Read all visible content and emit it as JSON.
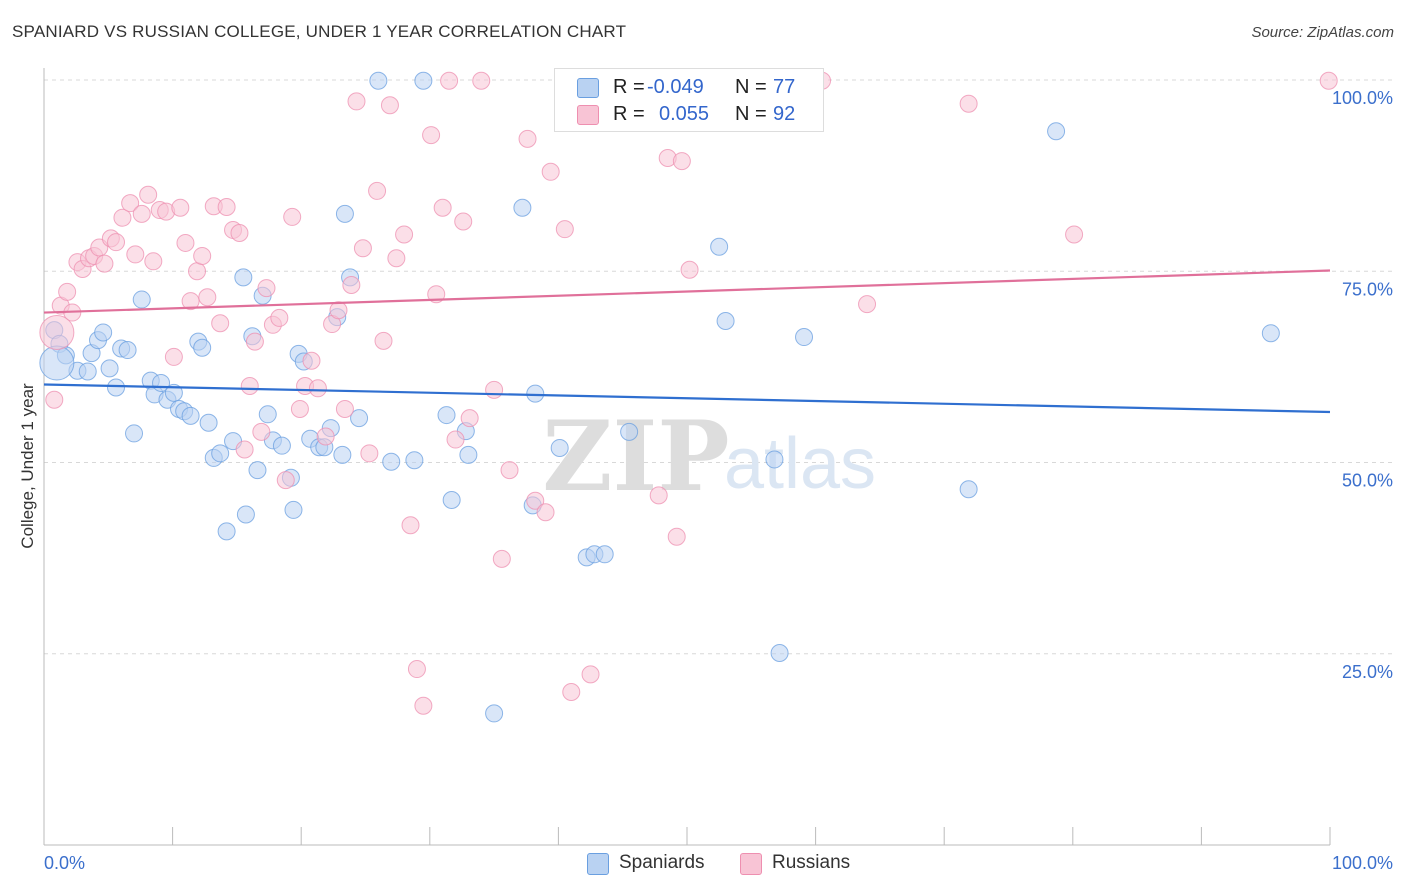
{
  "title": "SPANIARD VS RUSSIAN COLLEGE, UNDER 1 YEAR CORRELATION CHART",
  "source": "Source: ZipAtlas.com",
  "colors": {
    "spaniards": "#6a9fe0",
    "spaniards_fill": "#b9d2f2",
    "spaniards_line": "#2f6fd0",
    "russians": "#ee8fb0",
    "russians_fill": "#f8c4d5",
    "russians_line": "#e0709a",
    "axis_value": "#3b6fcc"
  },
  "legend": {
    "rows": [
      {
        "r_label": "R =",
        "r_value": "-0.049",
        "n_label": "N =",
        "n_value": "77"
      },
      {
        "r_label": "R =",
        "r_value": "0.055",
        "n_label": "N =",
        "n_value": "92"
      }
    ]
  },
  "bottom_legend": [
    {
      "label": "Spaniards"
    },
    {
      "label": "Russians"
    }
  ],
  "watermark": {
    "zip": "ZIP",
    "atlas": "atlas"
  },
  "chart_data": {
    "type": "scatter",
    "title": "SPANIARD VS RUSSIAN COLLEGE, UNDER 1 YEAR CORRELATION CHART",
    "xlabel": "",
    "ylabel": "College, Under 1 year",
    "xlim": [
      0,
      100
    ],
    "ylim": [
      0,
      100
    ],
    "x_tick_labels": [
      "0.0%",
      "100.0%"
    ],
    "y_tick_labels": [
      "25.0%",
      "50.0%",
      "75.0%",
      "100.0%"
    ],
    "y_ticks": [
      25,
      50,
      75,
      100
    ],
    "grid": "horizontal dashed",
    "legend_position": "top-center",
    "series": [
      {
        "name": "Spaniards",
        "r": -0.049,
        "n": 77,
        "trend": {
          "x": [
            0,
            100
          ],
          "y": [
            60.2,
            56.6
          ]
        },
        "points": [
          [
            0.8,
            67.3
          ],
          [
            1.2,
            65.5
          ],
          [
            1.7,
            64.0
          ],
          [
            2.6,
            62.0
          ],
          [
            3.4,
            61.9
          ],
          [
            3.7,
            64.3
          ],
          [
            4.2,
            66.0
          ],
          [
            4.6,
            67.0
          ],
          [
            5.1,
            62.3
          ],
          [
            5.6,
            59.8
          ],
          [
            6.0,
            64.9
          ],
          [
            6.5,
            64.7
          ],
          [
            7.0,
            53.8
          ],
          [
            7.6,
            71.3
          ],
          [
            8.3,
            60.7
          ],
          [
            8.6,
            58.9
          ],
          [
            9.1,
            60.4
          ],
          [
            9.6,
            58.2
          ],
          [
            10.1,
            59.1
          ],
          [
            10.5,
            57.0
          ],
          [
            10.9,
            56.7
          ],
          [
            11.4,
            56.1
          ],
          [
            12.0,
            65.8
          ],
          [
            12.3,
            65.0
          ],
          [
            12.8,
            55.2
          ],
          [
            13.2,
            50.6
          ],
          [
            13.7,
            51.2
          ],
          [
            14.2,
            41.0
          ],
          [
            14.7,
            52.8
          ],
          [
            15.5,
            74.2
          ],
          [
            15.7,
            43.2
          ],
          [
            16.2,
            66.5
          ],
          [
            16.6,
            49.0
          ],
          [
            17.0,
            71.8
          ],
          [
            17.4,
            56.3
          ],
          [
            17.8,
            52.9
          ],
          [
            18.5,
            52.2
          ],
          [
            19.2,
            48.0
          ],
          [
            19.4,
            43.8
          ],
          [
            19.8,
            64.2
          ],
          [
            20.2,
            63.2
          ],
          [
            20.7,
            53.1
          ],
          [
            21.4,
            52.0
          ],
          [
            21.8,
            52.0
          ],
          [
            22.3,
            54.5
          ],
          [
            22.8,
            69.0
          ],
          [
            23.2,
            51.0
          ],
          [
            23.4,
            82.5
          ],
          [
            23.8,
            74.2
          ],
          [
            24.5,
            55.8
          ],
          [
            26.0,
            99.9
          ],
          [
            27.0,
            50.1
          ],
          [
            28.8,
            50.3
          ],
          [
            29.5,
            99.9
          ],
          [
            31.3,
            56.2
          ],
          [
            31.7,
            45.1
          ],
          [
            32.8,
            54.1
          ],
          [
            33.0,
            51.0
          ],
          [
            37.2,
            83.3
          ],
          [
            38.0,
            44.4
          ],
          [
            38.2,
            59.0
          ],
          [
            40.1,
            51.9
          ],
          [
            42.2,
            37.6
          ],
          [
            42.8,
            38.0
          ],
          [
            43.6,
            38.0
          ],
          [
            45.5,
            54.0
          ],
          [
            49.0,
            99.9
          ],
          [
            52.5,
            78.2
          ],
          [
            53.0,
            68.5
          ],
          [
            56.8,
            50.4
          ],
          [
            57.2,
            25.1
          ],
          [
            59.1,
            66.4
          ],
          [
            71.9,
            46.5
          ],
          [
            78.7,
            93.3
          ],
          [
            95.4,
            66.9
          ],
          [
            35.0,
            17.2
          ],
          [
            1.0,
            63.0
          ]
        ]
      },
      {
        "name": "Russians",
        "r": 0.055,
        "n": 92,
        "trend": {
          "x": [
            0,
            100
          ],
          "y": [
            69.6,
            75.1
          ]
        },
        "points": [
          [
            0.8,
            58.2
          ],
          [
            1.3,
            70.5
          ],
          [
            1.8,
            72.3
          ],
          [
            2.2,
            69.6
          ],
          [
            2.6,
            76.2
          ],
          [
            3.0,
            75.3
          ],
          [
            3.5,
            76.7
          ],
          [
            3.9,
            77.0
          ],
          [
            4.3,
            78.1
          ],
          [
            4.7,
            76.0
          ],
          [
            5.2,
            79.3
          ],
          [
            5.6,
            78.8
          ],
          [
            6.1,
            82.0
          ],
          [
            6.7,
            83.9
          ],
          [
            7.1,
            77.2
          ],
          [
            7.6,
            82.5
          ],
          [
            8.1,
            85.0
          ],
          [
            8.5,
            76.3
          ],
          [
            9.0,
            83.0
          ],
          [
            9.5,
            82.8
          ],
          [
            10.1,
            63.8
          ],
          [
            10.6,
            83.3
          ],
          [
            11.0,
            78.7
          ],
          [
            11.4,
            71.1
          ],
          [
            11.9,
            75.0
          ],
          [
            12.3,
            77.0
          ],
          [
            12.7,
            71.6
          ],
          [
            13.2,
            83.5
          ],
          [
            13.7,
            68.2
          ],
          [
            14.2,
            83.4
          ],
          [
            14.7,
            80.4
          ],
          [
            15.2,
            80.0
          ],
          [
            15.6,
            51.7
          ],
          [
            16.0,
            60.0
          ],
          [
            16.4,
            65.8
          ],
          [
            16.9,
            54.0
          ],
          [
            17.3,
            72.8
          ],
          [
            17.8,
            68.0
          ],
          [
            18.3,
            68.9
          ],
          [
            18.8,
            47.7
          ],
          [
            19.3,
            82.1
          ],
          [
            19.9,
            57.0
          ],
          [
            20.3,
            60.0
          ],
          [
            20.8,
            63.3
          ],
          [
            21.3,
            59.7
          ],
          [
            21.9,
            53.4
          ],
          [
            22.4,
            68.1
          ],
          [
            22.9,
            69.9
          ],
          [
            23.4,
            57.0
          ],
          [
            23.9,
            73.2
          ],
          [
            24.3,
            97.2
          ],
          [
            24.8,
            78.0
          ],
          [
            25.3,
            51.2
          ],
          [
            25.9,
            85.5
          ],
          [
            26.4,
            65.9
          ],
          [
            26.9,
            96.7
          ],
          [
            27.4,
            76.7
          ],
          [
            28.0,
            79.8
          ],
          [
            28.5,
            41.8
          ],
          [
            29.0,
            23.0
          ],
          [
            29.5,
            18.2
          ],
          [
            30.1,
            92.8
          ],
          [
            30.5,
            72.0
          ],
          [
            31.0,
            83.3
          ],
          [
            31.5,
            99.9
          ],
          [
            32.0,
            53.0
          ],
          [
            32.6,
            81.5
          ],
          [
            33.1,
            55.8
          ],
          [
            34.0,
            99.9
          ],
          [
            35.0,
            59.5
          ],
          [
            35.6,
            37.4
          ],
          [
            36.2,
            49.0
          ],
          [
            37.6,
            92.3
          ],
          [
            38.2,
            45.0
          ],
          [
            39.0,
            43.5
          ],
          [
            39.4,
            88.0
          ],
          [
            40.5,
            80.5
          ],
          [
            41.0,
            20.0
          ],
          [
            42.5,
            22.3
          ],
          [
            46.7,
            99.9
          ],
          [
            47.8,
            45.7
          ],
          [
            48.5,
            89.8
          ],
          [
            49.2,
            40.3
          ],
          [
            49.6,
            89.4
          ],
          [
            50.2,
            75.2
          ],
          [
            59.0,
            99.9
          ],
          [
            60.5,
            99.9
          ],
          [
            64.0,
            70.7
          ],
          [
            71.9,
            96.9
          ],
          [
            80.1,
            79.8
          ],
          [
            99.9,
            99.9
          ],
          [
            1.0,
            67.0
          ]
        ]
      }
    ]
  }
}
